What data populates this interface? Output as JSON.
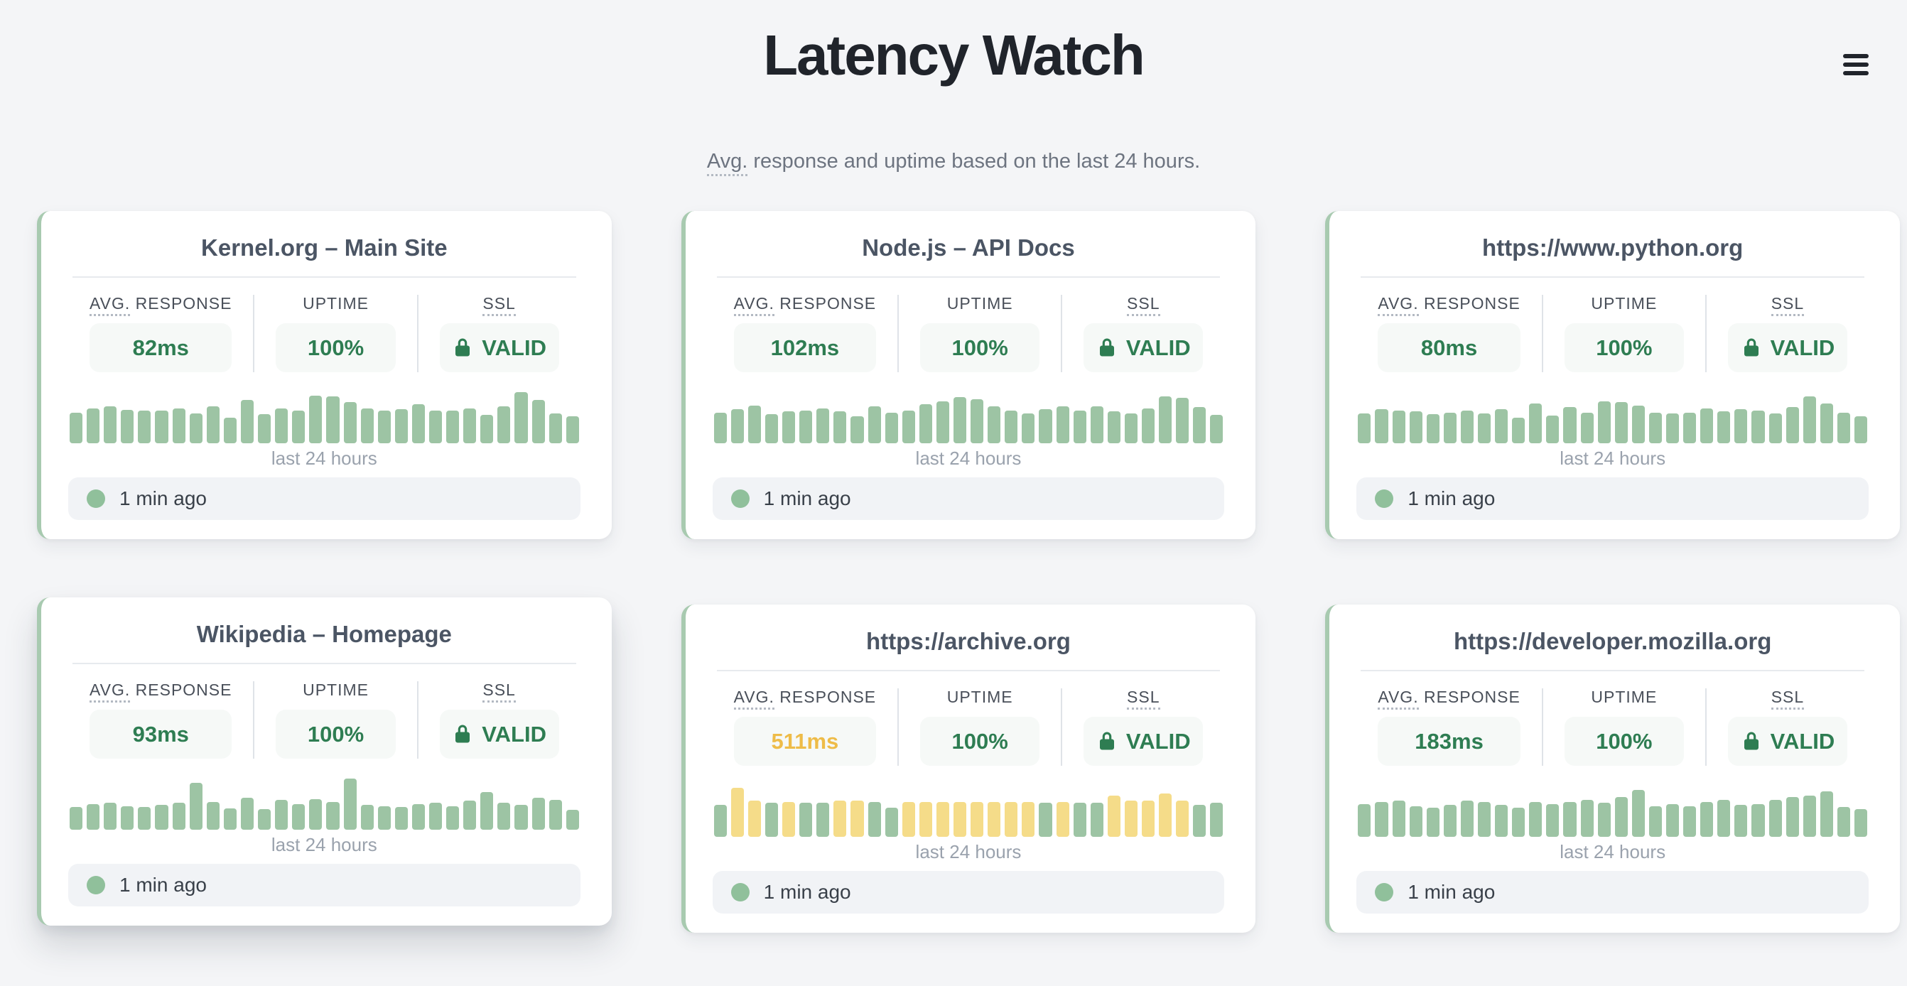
{
  "header": {
    "title": "Latency Watch",
    "subtitle": {
      "abbr": "Avg.",
      "rest": " response and uptime based on the last 24 hours."
    },
    "menu_icon": "hamburger-icon"
  },
  "labels": {
    "avg_response_abbr": "AVG.",
    "avg_response_rest": " RESPONSE",
    "uptime": "UPTIME",
    "ssl": "SSL",
    "chart_caption": "last 24 hours",
    "lock_icon": "lock-icon",
    "status_dot_icon": "status-dot-icon"
  },
  "colors": {
    "ok_green": "#2e7d52",
    "warn_yellow": "#eebc48",
    "bar_green": "#9dc4a4",
    "bar_yellow": "#f5dc89",
    "accent_border": "#a8cab0",
    "dot_green": "#90c09b"
  },
  "cards": [
    {
      "title": "Kernel.org – Main Site",
      "avg_response": "82ms",
      "avg_response_status": "ok",
      "uptime": "100%",
      "ssl": "VALID",
      "last_checked": "1 min ago",
      "elevated": false,
      "bars": [
        [
          60,
          "g"
        ],
        [
          68,
          "g"
        ],
        [
          72,
          "g"
        ],
        [
          65,
          "g"
        ],
        [
          63,
          "g"
        ],
        [
          63,
          "g"
        ],
        [
          68,
          "g"
        ],
        [
          58,
          "g"
        ],
        [
          72,
          "g"
        ],
        [
          50,
          "g"
        ],
        [
          85,
          "g"
        ],
        [
          56,
          "g"
        ],
        [
          68,
          "g"
        ],
        [
          63,
          "g"
        ],
        [
          93,
          "g"
        ],
        [
          91,
          "g"
        ],
        [
          80,
          "g"
        ],
        [
          68,
          "g"
        ],
        [
          63,
          "g"
        ],
        [
          66,
          "g"
        ],
        [
          76,
          "g"
        ],
        [
          63,
          "g"
        ],
        [
          63,
          "g"
        ],
        [
          68,
          "g"
        ],
        [
          55,
          "g"
        ],
        [
          72,
          "g"
        ],
        [
          100,
          "g"
        ],
        [
          84,
          "g"
        ],
        [
          58,
          "g"
        ],
        [
          52,
          "g"
        ]
      ]
    },
    {
      "title": "Node.js – API Docs",
      "avg_response": "102ms",
      "avg_response_status": "ok",
      "uptime": "100%",
      "ssl": "VALID",
      "last_checked": "1 min ago",
      "elevated": false,
      "bars": [
        [
          60,
          "g"
        ],
        [
          66,
          "g"
        ],
        [
          74,
          "g"
        ],
        [
          56,
          "g"
        ],
        [
          62,
          "g"
        ],
        [
          64,
          "g"
        ],
        [
          68,
          "g"
        ],
        [
          62,
          "g"
        ],
        [
          52,
          "g"
        ],
        [
          72,
          "g"
        ],
        [
          60,
          "g"
        ],
        [
          64,
          "g"
        ],
        [
          76,
          "g"
        ],
        [
          82,
          "g"
        ],
        [
          90,
          "g"
        ],
        [
          86,
          "g"
        ],
        [
          72,
          "g"
        ],
        [
          64,
          "g"
        ],
        [
          58,
          "g"
        ],
        [
          66,
          "g"
        ],
        [
          72,
          "g"
        ],
        [
          64,
          "g"
        ],
        [
          72,
          "g"
        ],
        [
          62,
          "g"
        ],
        [
          58,
          "g"
        ],
        [
          68,
          "g"
        ],
        [
          92,
          "g"
        ],
        [
          88,
          "g"
        ],
        [
          70,
          "g"
        ],
        [
          55,
          "g"
        ]
      ]
    },
    {
      "title": "https://www.python.org",
      "avg_response": "80ms",
      "avg_response_status": "ok",
      "uptime": "100%",
      "ssl": "VALID",
      "last_checked": "1 min ago",
      "elevated": false,
      "bars": [
        [
          58,
          "g"
        ],
        [
          66,
          "g"
        ],
        [
          64,
          "g"
        ],
        [
          62,
          "g"
        ],
        [
          56,
          "g"
        ],
        [
          60,
          "g"
        ],
        [
          64,
          "g"
        ],
        [
          58,
          "g"
        ],
        [
          66,
          "g"
        ],
        [
          50,
          "g"
        ],
        [
          78,
          "g"
        ],
        [
          54,
          "g"
        ],
        [
          70,
          "g"
        ],
        [
          60,
          "g"
        ],
        [
          82,
          "g"
        ],
        [
          80,
          "g"
        ],
        [
          74,
          "g"
        ],
        [
          60,
          "g"
        ],
        [
          58,
          "g"
        ],
        [
          60,
          "g"
        ],
        [
          68,
          "g"
        ],
        [
          62,
          "g"
        ],
        [
          66,
          "g"
        ],
        [
          64,
          "g"
        ],
        [
          58,
          "g"
        ],
        [
          70,
          "g"
        ],
        [
          92,
          "g"
        ],
        [
          78,
          "g"
        ],
        [
          60,
          "g"
        ],
        [
          52,
          "g"
        ]
      ]
    },
    {
      "title": "Wikipedia – Homepage",
      "avg_response": "93ms",
      "avg_response_status": "ok",
      "uptime": "100%",
      "ssl": "VALID",
      "last_checked": "1 min ago",
      "elevated": true,
      "bars": [
        [
          44,
          "g"
        ],
        [
          50,
          "g"
        ],
        [
          52,
          "g"
        ],
        [
          46,
          "g"
        ],
        [
          44,
          "g"
        ],
        [
          48,
          "g"
        ],
        [
          52,
          "g"
        ],
        [
          92,
          "g"
        ],
        [
          54,
          "g"
        ],
        [
          42,
          "g"
        ],
        [
          62,
          "g"
        ],
        [
          40,
          "g"
        ],
        [
          58,
          "g"
        ],
        [
          50,
          "g"
        ],
        [
          60,
          "g"
        ],
        [
          54,
          "g"
        ],
        [
          100,
          "g"
        ],
        [
          48,
          "g"
        ],
        [
          46,
          "g"
        ],
        [
          44,
          "g"
        ],
        [
          50,
          "g"
        ],
        [
          52,
          "g"
        ],
        [
          46,
          "g"
        ],
        [
          56,
          "g"
        ],
        [
          74,
          "g"
        ],
        [
          52,
          "g"
        ],
        [
          48,
          "g"
        ],
        [
          62,
          "g"
        ],
        [
          58,
          "g"
        ],
        [
          38,
          "g"
        ]
      ]
    },
    {
      "title": "https://archive.org",
      "avg_response": "511ms",
      "avg_response_status": "slow",
      "uptime": "100%",
      "ssl": "VALID",
      "last_checked": "1 min ago",
      "elevated": false,
      "bars": [
        [
          62,
          "g"
        ],
        [
          95,
          "y"
        ],
        [
          70,
          "y"
        ],
        [
          66,
          "g"
        ],
        [
          68,
          "y"
        ],
        [
          66,
          "g"
        ],
        [
          66,
          "g"
        ],
        [
          70,
          "y"
        ],
        [
          70,
          "y"
        ],
        [
          68,
          "g"
        ],
        [
          56,
          "g"
        ],
        [
          68,
          "y"
        ],
        [
          68,
          "y"
        ],
        [
          68,
          "y"
        ],
        [
          68,
          "y"
        ],
        [
          68,
          "y"
        ],
        [
          68,
          "y"
        ],
        [
          68,
          "y"
        ],
        [
          68,
          "y"
        ],
        [
          66,
          "g"
        ],
        [
          68,
          "y"
        ],
        [
          66,
          "g"
        ],
        [
          66,
          "g"
        ],
        [
          80,
          "y"
        ],
        [
          70,
          "y"
        ],
        [
          70,
          "y"
        ],
        [
          84,
          "y"
        ],
        [
          70,
          "y"
        ],
        [
          62,
          "g"
        ],
        [
          66,
          "g"
        ]
      ]
    },
    {
      "title": "https://developer.mozilla.org",
      "avg_response": "183ms",
      "avg_response_status": "ok",
      "uptime": "100%",
      "ssl": "VALID",
      "last_checked": "1 min ago",
      "elevated": false,
      "bars": [
        [
          64,
          "g"
        ],
        [
          68,
          "g"
        ],
        [
          70,
          "g"
        ],
        [
          60,
          "g"
        ],
        [
          56,
          "g"
        ],
        [
          62,
          "g"
        ],
        [
          70,
          "g"
        ],
        [
          68,
          "g"
        ],
        [
          62,
          "g"
        ],
        [
          56,
          "g"
        ],
        [
          68,
          "g"
        ],
        [
          64,
          "g"
        ],
        [
          68,
          "g"
        ],
        [
          72,
          "g"
        ],
        [
          66,
          "g"
        ],
        [
          78,
          "g"
        ],
        [
          92,
          "g"
        ],
        [
          60,
          "g"
        ],
        [
          64,
          "g"
        ],
        [
          60,
          "g"
        ],
        [
          68,
          "g"
        ],
        [
          72,
          "g"
        ],
        [
          62,
          "g"
        ],
        [
          64,
          "g"
        ],
        [
          72,
          "g"
        ],
        [
          78,
          "g"
        ],
        [
          80,
          "g"
        ],
        [
          88,
          "g"
        ],
        [
          58,
          "g"
        ],
        [
          54,
          "g"
        ]
      ]
    }
  ]
}
